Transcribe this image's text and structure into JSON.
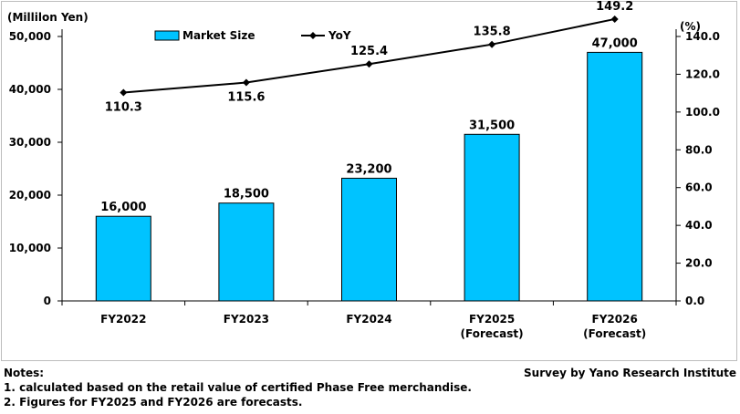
{
  "chart_data": {
    "type": "bar",
    "categories": [
      [
        "FY2022"
      ],
      [
        "FY2023"
      ],
      [
        "FY2024"
      ],
      [
        "FY2025",
        "(Forecast)"
      ],
      [
        "FY2026",
        "(Forecast)"
      ]
    ],
    "series": [
      {
        "name": "Market Size",
        "type": "bar",
        "axis": "left",
        "values": [
          16000,
          18500,
          23200,
          31500,
          47000
        ],
        "labels": [
          "16,000",
          "18,500",
          "23,200",
          "31,500",
          "47,000"
        ],
        "color": "#00c3ff"
      },
      {
        "name": "YoY",
        "type": "line",
        "axis": "right",
        "values": [
          110.3,
          115.6,
          125.4,
          135.8,
          149.2
        ],
        "labels": [
          "110.3",
          "115.6",
          "125.4",
          "135.8",
          "149.2"
        ],
        "color": "#000000"
      }
    ],
    "y_left": {
      "unit": "(Millilon Yen)",
      "ylim": [
        0,
        50000
      ],
      "ticks": [
        0,
        10000,
        20000,
        30000,
        40000,
        50000
      ],
      "tick_labels": [
        "0",
        "10,000",
        "20,000",
        "30,000",
        "40,000",
        "50,000"
      ]
    },
    "y_right": {
      "unit": "(%)",
      "ylim": [
        0,
        140
      ],
      "ticks": [
        0,
        20,
        40,
        60,
        80,
        100,
        120,
        140
      ],
      "tick_labels": [
        "0.0",
        "20.0",
        "40.0",
        "60.0",
        "80.0",
        "100.0",
        "120.0",
        "140.0"
      ]
    },
    "legend": {
      "placement": "top-center",
      "entries": [
        "Market Size",
        "YoY"
      ]
    },
    "grid": false
  },
  "notes": {
    "heading": "Notes:",
    "lines": [
      "1. calculated based on the retail value of certified Phase Free merchandise.",
      "2. Figures for FY2025 and FY2026 are forecasts."
    ]
  },
  "source": "Survey by Yano Research Institute"
}
